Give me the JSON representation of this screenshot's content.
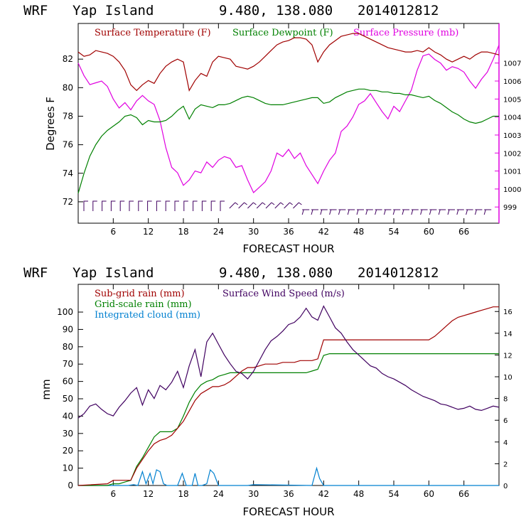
{
  "chart_data": [
    {
      "type": "line",
      "title_model": "WRF",
      "title_location": "Yap Island",
      "title_coords": "9.480, 138.080",
      "title_date": "2014012812",
      "xlabel": "FORECAST HOUR",
      "ylabel": "Degrees F",
      "xlim": [
        0,
        72
      ],
      "ylim": [
        70.5,
        84.5
      ],
      "y2lim": [
        998.1,
        1009.2
      ],
      "x_ticks": [
        "6",
        "12",
        "18",
        "24",
        "30",
        "36",
        "42",
        "48",
        "54",
        "60",
        "66"
      ],
      "y_ticks": [
        "72",
        "74",
        "76",
        "78",
        "80",
        "82"
      ],
      "y2_ticks": [
        "999",
        "1000",
        "1001",
        "1002",
        "1003",
        "1004",
        "1005",
        "1006",
        "1007"
      ],
      "legend": [
        "Surface Temperature (F)",
        "Surface Dewpoint (F)",
        "Surface Pressure (mb)"
      ],
      "series": [
        {
          "name": "Surface Temperature (F)",
          "color": "#a00000",
          "axis": "left",
          "x": [
            0,
            1,
            2,
            3,
            4,
            5,
            6,
            7,
            8,
            9,
            10,
            11,
            12,
            13,
            14,
            15,
            16,
            17,
            18,
            19,
            20,
            21,
            22,
            23,
            24,
            25,
            26,
            27,
            28,
            29,
            30,
            31,
            32,
            33,
            34,
            35,
            36,
            37,
            38,
            39,
            40,
            41,
            42,
            43,
            44,
            45,
            46,
            47,
            48,
            49,
            50,
            51,
            52,
            53,
            54,
            55,
            56,
            57,
            58,
            59,
            60,
            61,
            62,
            63,
            64,
            65,
            66,
            67,
            68,
            69,
            70,
            71,
            72
          ],
          "values": [
            82.5,
            82.2,
            82.3,
            82.6,
            82.5,
            82.4,
            82.2,
            81.8,
            81.2,
            80.2,
            79.8,
            80.2,
            80.5,
            80.3,
            81.0,
            81.5,
            81.8,
            82.0,
            81.8,
            79.8,
            80.5,
            81.0,
            80.8,
            81.8,
            82.2,
            82.1,
            82.0,
            81.5,
            81.4,
            81.3,
            81.5,
            81.8,
            82.2,
            82.6,
            83.0,
            83.2,
            83.3,
            83.5,
            83.5,
            83.4,
            83.0,
            81.8,
            82.5,
            83.0,
            83.3,
            83.6,
            83.7,
            83.8,
            83.8,
            83.6,
            83.4,
            83.2,
            83.0,
            82.8,
            82.7,
            82.6,
            82.5,
            82.5,
            82.6,
            82.5,
            82.8,
            82.5,
            82.3,
            82.0,
            81.8,
            82.0,
            82.2,
            82.0,
            82.3,
            82.5,
            82.5,
            82.4,
            82.3
          ]
        },
        {
          "name": "Surface Dewpoint (F)",
          "color": "#008000",
          "axis": "left",
          "x": [
            0,
            1,
            2,
            3,
            4,
            5,
            6,
            7,
            8,
            9,
            10,
            11,
            12,
            13,
            14,
            15,
            16,
            17,
            18,
            19,
            20,
            21,
            22,
            23,
            24,
            25,
            26,
            27,
            28,
            29,
            30,
            31,
            32,
            33,
            34,
            35,
            36,
            37,
            38,
            39,
            40,
            41,
            42,
            43,
            44,
            45,
            46,
            47,
            48,
            49,
            50,
            51,
            52,
            53,
            54,
            55,
            56,
            57,
            58,
            59,
            60,
            61,
            62,
            63,
            64,
            65,
            66,
            67,
            68,
            69,
            70,
            71,
            72
          ],
          "values": [
            72.6,
            74.0,
            75.2,
            76.0,
            76.6,
            77.0,
            77.3,
            77.6,
            78.0,
            78.1,
            77.9,
            77.4,
            77.7,
            77.6,
            77.6,
            77.7,
            78.0,
            78.4,
            78.7,
            77.8,
            78.5,
            78.8,
            78.7,
            78.6,
            78.8,
            78.8,
            78.9,
            79.1,
            79.3,
            79.4,
            79.3,
            79.1,
            78.9,
            78.8,
            78.8,
            78.8,
            78.9,
            79.0,
            79.1,
            79.2,
            79.3,
            79.3,
            78.9,
            79.0,
            79.3,
            79.5,
            79.7,
            79.8,
            79.9,
            79.9,
            79.8,
            79.8,
            79.7,
            79.7,
            79.6,
            79.6,
            79.5,
            79.5,
            79.4,
            79.3,
            79.4,
            79.1,
            78.9,
            78.6,
            78.3,
            78.1,
            77.8,
            77.6,
            77.5,
            77.6,
            77.8,
            78.0,
            78.0
          ]
        },
        {
          "name": "Surface Pressure (mb)",
          "color": "#e000e0",
          "axis": "right",
          "x": [
            0,
            1,
            2,
            3,
            4,
            5,
            6,
            7,
            8,
            9,
            10,
            11,
            12,
            13,
            14,
            15,
            16,
            17,
            18,
            19,
            20,
            21,
            22,
            23,
            24,
            25,
            26,
            27,
            28,
            29,
            30,
            31,
            32,
            33,
            34,
            35,
            36,
            37,
            38,
            39,
            40,
            41,
            42,
            43,
            44,
            45,
            46,
            47,
            48,
            49,
            50,
            51,
            52,
            53,
            54,
            55,
            56,
            57,
            58,
            59,
            60,
            61,
            62,
            63,
            64,
            65,
            66,
            67,
            68,
            69,
            70,
            71,
            72
          ],
          "values": [
            1007.0,
            1006.3,
            1005.8,
            1005.9,
            1006.0,
            1005.7,
            1005.0,
            1004.5,
            1004.8,
            1004.4,
            1004.9,
            1005.2,
            1004.9,
            1004.7,
            1003.8,
            1002.3,
            1001.2,
            1000.9,
            1000.2,
            1000.5,
            1001.0,
            1000.9,
            1001.5,
            1001.2,
            1001.6,
            1001.8,
            1001.7,
            1001.2,
            1001.3,
            1000.5,
            999.8,
            1000.1,
            1000.4,
            1001.0,
            1002.0,
            1001.8,
            1002.2,
            1001.7,
            1002.0,
            1001.3,
            1000.8,
            1000.3,
            1001.0,
            1001.6,
            1002.0,
            1003.2,
            1003.5,
            1004.0,
            1004.7,
            1004.9,
            1005.3,
            1004.8,
            1004.3,
            1003.9,
            1004.6,
            1004.3,
            1004.9,
            1005.5,
            1006.6,
            1007.4,
            1007.5,
            1007.2,
            1007.0,
            1006.6,
            1006.8,
            1006.7,
            1006.5,
            1006.0,
            1005.6,
            1006.1,
            1006.5,
            1007.2,
            1008.0
          ]
        }
      ],
      "wind_barbs": "wind barbs along bottom of upper panel"
    },
    {
      "type": "line",
      "title_model": "WRF",
      "title_location": "Yap Island",
      "title_coords": "9.480, 138.080",
      "title_date": "2014012812",
      "xlabel": "FORECAST HOUR",
      "ylabel": "mm",
      "xlim": [
        0,
        72
      ],
      "ylim": [
        0,
        116
      ],
      "y2lim": [
        0,
        18.5
      ],
      "x_ticks": [
        "6",
        "12",
        "18",
        "24",
        "30",
        "36",
        "42",
        "48",
        "54",
        "60",
        "66"
      ],
      "y_ticks": [
        "0",
        "10",
        "20",
        "30",
        "40",
        "50",
        "60",
        "70",
        "80",
        "90",
        "100"
      ],
      "y2_ticks": [
        "0",
        "2",
        "4",
        "6",
        "8",
        "10",
        "12",
        "14",
        "16"
      ],
      "legend": [
        "Sub-grid rain (mm)",
        "Grid-scale rain (mm)",
        "Integrated cloud (mm)",
        "Surface Wind Speed (m/s)"
      ],
      "series": [
        {
          "name": "Sub-grid rain (mm)",
          "color": "#a00000",
          "axis": "left",
          "x": [
            0,
            5,
            6,
            7,
            8,
            9,
            10,
            11,
            12,
            13,
            14,
            15,
            16,
            17,
            18,
            19,
            20,
            21,
            22,
            23,
            24,
            25,
            26,
            27,
            28,
            29,
            30,
            31,
            32,
            33,
            34,
            35,
            36,
            37,
            38,
            39,
            40,
            41,
            42,
            43,
            44,
            45,
            46,
            47,
            48,
            49,
            50,
            51,
            52,
            53,
            54,
            55,
            56,
            57,
            58,
            59,
            60,
            61,
            62,
            63,
            64,
            65,
            66,
            67,
            68,
            69,
            70,
            71,
            72
          ],
          "values": [
            0,
            1,
            3,
            3,
            3,
            3,
            10,
            15,
            20,
            24,
            26,
            27,
            29,
            33,
            37,
            43,
            49,
            53,
            55,
            57,
            57,
            58,
            60,
            63,
            66,
            68,
            68,
            69,
            70,
            70,
            70,
            71,
            71,
            71,
            72,
            72,
            72,
            73,
            84,
            84,
            84,
            84,
            84,
            84,
            84,
            84,
            84,
            84,
            84,
            84,
            84,
            84,
            84,
            84,
            84,
            84,
            84,
            86,
            89,
            92,
            95,
            97,
            98,
            99,
            100,
            101,
            102,
            103,
            103
          ]
        },
        {
          "name": "Grid-scale rain (mm)",
          "color": "#008000",
          "axis": "left",
          "x": [
            0,
            5,
            6,
            7,
            8,
            9,
            10,
            11,
            12,
            13,
            14,
            15,
            16,
            17,
            18,
            19,
            20,
            21,
            22,
            23,
            24,
            25,
            26,
            27,
            28,
            29,
            30,
            31,
            32,
            33,
            34,
            35,
            36,
            37,
            38,
            39,
            40,
            41,
            42,
            43,
            44,
            45,
            46,
            47,
            48,
            49,
            50,
            51,
            52,
            53,
            54,
            55,
            56,
            57,
            58,
            59,
            60,
            61,
            62,
            63,
            64,
            65,
            66,
            67,
            68,
            69,
            70,
            71,
            72
          ],
          "values": [
            0,
            0,
            1,
            1,
            2,
            3,
            11,
            16,
            22,
            28,
            31,
            31,
            31,
            33,
            40,
            48,
            54,
            58,
            60,
            61,
            63,
            64,
            65,
            65,
            65,
            65,
            65,
            65,
            65,
            65,
            65,
            65,
            65,
            65,
            65,
            65,
            66,
            67,
            75,
            76,
            76,
            76,
            76,
            76,
            76,
            76,
            76,
            76,
            76,
            76,
            76,
            76,
            76,
            76,
            76,
            76,
            76,
            76,
            76,
            76,
            76,
            76,
            76,
            76,
            76,
            76,
            76,
            76,
            76
          ]
        },
        {
          "name": "Integrated cloud (mm)",
          "color": "#0080d0",
          "axis": "left",
          "x": [
            0,
            8.5,
            9.5,
            10.2,
            11,
            11.6,
            12.3,
            12.8,
            13.4,
            14,
            14.6,
            15.2,
            16,
            17,
            17.8,
            18.5,
            19.5,
            20,
            20.5,
            21.2,
            22,
            22.6,
            23.2,
            24,
            25,
            29,
            30,
            40,
            40.8,
            41.3,
            42,
            43,
            72
          ],
          "values": [
            0,
            0,
            0.5,
            0,
            8,
            1,
            7,
            1,
            9,
            8,
            1,
            0,
            0,
            0,
            7,
            0,
            0,
            7,
            0,
            0,
            1,
            9,
            7,
            0,
            0,
            0,
            0.5,
            0,
            10,
            4,
            0,
            0,
            0
          ]
        },
        {
          "name": "Surface Wind Speed (m/s)",
          "color": "#400060",
          "axis": "right",
          "x": [
            0,
            1,
            2,
            3,
            4,
            5,
            6,
            7,
            8,
            9,
            10,
            11,
            12,
            13,
            14,
            15,
            16,
            17,
            18,
            19,
            20,
            21,
            22,
            23,
            24,
            25,
            26,
            27,
            28,
            29,
            30,
            31,
            32,
            33,
            34,
            35,
            36,
            37,
            38,
            39,
            40,
            41,
            42,
            43,
            44,
            45,
            46,
            47,
            48,
            49,
            50,
            51,
            52,
            53,
            54,
            55,
            56,
            57,
            58,
            59,
            60,
            61,
            62,
            63,
            64,
            65,
            66,
            67,
            68,
            69,
            70,
            71,
            72
          ],
          "values": [
            6.2,
            6.6,
            7.3,
            7.5,
            7.0,
            6.6,
            6.4,
            7.2,
            7.8,
            8.5,
            9.0,
            7.4,
            8.8,
            8.0,
            9.2,
            8.8,
            9.5,
            10.5,
            9.0,
            11.0,
            12.5,
            10.0,
            13.2,
            14.0,
            13.0,
            12.0,
            11.2,
            10.5,
            10.3,
            9.8,
            10.5,
            11.5,
            12.5,
            13.3,
            13.7,
            14.2,
            14.8,
            15.0,
            15.5,
            16.3,
            15.5,
            15.2,
            16.5,
            15.5,
            14.5,
            14.0,
            13.2,
            12.5,
            12.0,
            11.5,
            11.0,
            10.8,
            10.3,
            10.0,
            9.8,
            9.5,
            9.2,
            8.8,
            8.5,
            8.2,
            8.0,
            7.8,
            7.5,
            7.4,
            7.2,
            7.0,
            7.1,
            7.3,
            7.0,
            6.9,
            7.1,
            7.3,
            7.2
          ]
        }
      ]
    }
  ]
}
